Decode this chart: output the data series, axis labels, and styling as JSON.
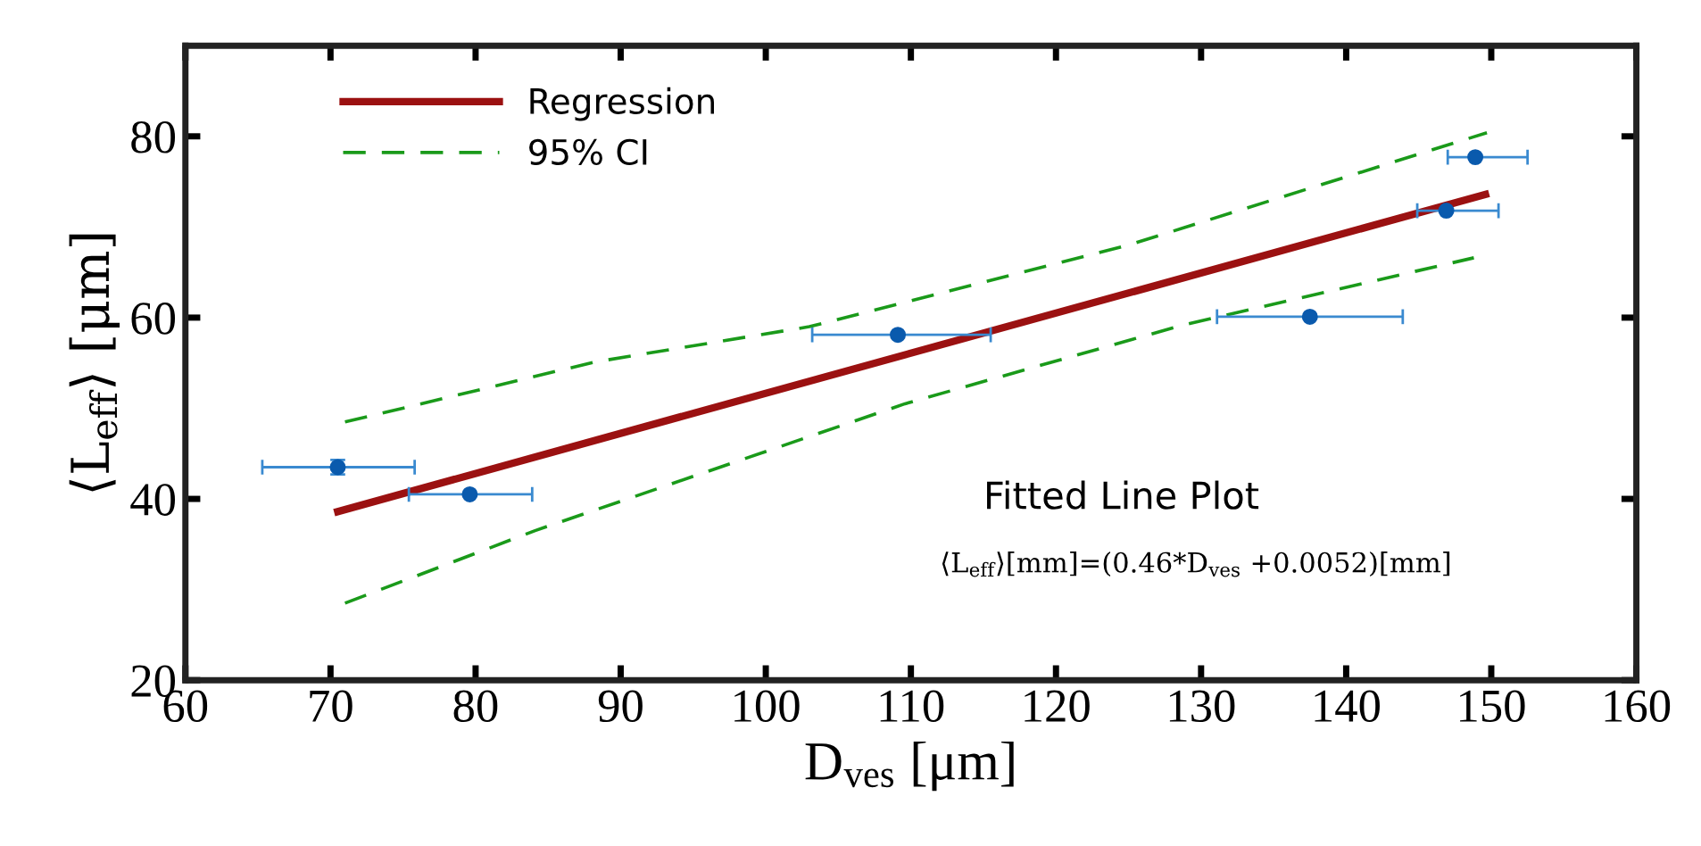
{
  "chart_data": {
    "type": "scatter",
    "xlabel": "D$_{ves}$ [μm]",
    "ylabel": "⟨L$_{eff}$⟩ [μm]",
    "xlim": [
      60,
      160
    ],
    "ylim": [
      20,
      90
    ],
    "xticks": [
      60,
      70,
      80,
      90,
      100,
      110,
      120,
      130,
      140,
      150,
      160
    ],
    "yticks": [
      20,
      40,
      60,
      80
    ],
    "grid": false,
    "legend": "top left",
    "annotations": [
      "Fitted Line Plot",
      "⟨L$_{eff}$⟩[mm]=(0.46*D$_{ves}$ +0.0052)[mm]"
    ],
    "series": [
      {
        "color": "#0a5aad",
        "marker": "circle",
        "x": [
          70.5,
          79.6,
          109.1,
          137.5,
          146.9,
          148.9
        ],
        "values": [
          43.5,
          40.5,
          58.1,
          60.1,
          71.8,
          77.7
        ],
        "errors": [
          0.8,
          null,
          null,
          null,
          null,
          null
        ],
        "xerrors": [
          [
            65.3,
            75.8
          ],
          [
            75.4,
            83.9
          ],
          [
            103.2,
            115.5
          ],
          [
            131.1,
            143.9
          ],
          [
            144.9,
            150.5
          ],
          [
            147.0,
            152.5
          ]
        ]
      },
      {
        "type": "line",
        "name": "Regression",
        "color": "#9b1111",
        "line_style": "solid",
        "x": [
          70.5,
          149.6
        ],
        "values": [
          38.6,
          73.6
        ]
      },
      {
        "type": "line",
        "name": "95% CI",
        "color": "#1a9a1a",
        "line_style": "dashed",
        "x": [
          71,
          75.5,
          88.2,
          103,
          125,
          149.7
        ],
        "values": [
          48.5,
          50.2,
          55.1,
          59.0,
          68.0,
          80.4
        ]
      },
      {
        "type": "line",
        "color": "#1a9a1a",
        "line_style": "dashed",
        "x": [
          71,
          84.1,
          109.6,
          128.8,
          148.8
        ],
        "values": [
          28.5,
          36.5,
          50.5,
          59.2,
          66.6
        ]
      }
    ]
  }
}
